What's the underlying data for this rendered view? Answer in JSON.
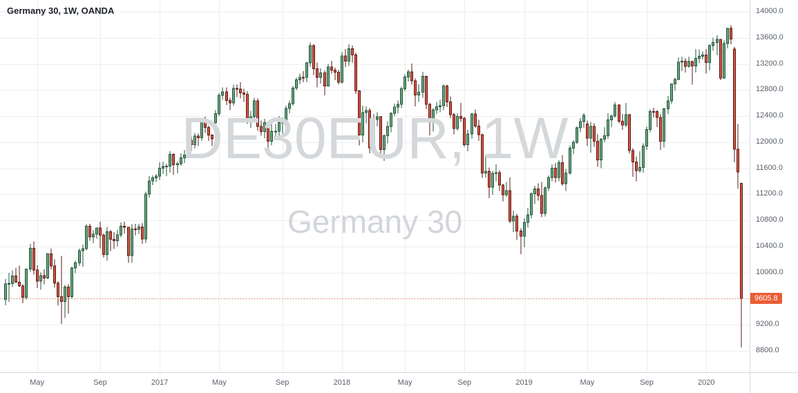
{
  "legend": {
    "title": "Germany 30, 1W, OANDA"
  },
  "watermark": {
    "line1": "DE30EUR, 1W",
    "line2": "Germany 30"
  },
  "price_label": {
    "value": "9605.8"
  },
  "colors": {
    "up_fill": "#6ba583",
    "up_border": "#225437",
    "down_fill": "#d75442",
    "down_border": "#5b1a13",
    "grid": "#ededef",
    "axis_text": "#585f6a",
    "price_line": "#ea5d34",
    "watermark": "#d5d8db"
  },
  "chart_data": {
    "type": "candlestick",
    "title": "Germany 30, 1W, OANDA",
    "symbol": "DE30EUR",
    "timeframe": "1W",
    "exchange": "OANDA",
    "last_price": 9605.8,
    "ylim": [
      8470,
      14180
    ],
    "y_ticks": [
      8800,
      9200,
      9600,
      10000,
      10400,
      10800,
      11200,
      11600,
      12000,
      12400,
      12800,
      13200,
      13600,
      14000
    ],
    "x_ticks": [
      {
        "i": 9,
        "label": "May"
      },
      {
        "i": 27,
        "label": "Sep"
      },
      {
        "i": 44,
        "label": "2017"
      },
      {
        "i": 61,
        "label": "May"
      },
      {
        "i": 79,
        "label": "Sep"
      },
      {
        "i": 96,
        "label": "2018"
      },
      {
        "i": 114,
        "label": "May"
      },
      {
        "i": 131,
        "label": "Sep"
      },
      {
        "i": 148,
        "label": "2019"
      },
      {
        "i": 166,
        "label": "May"
      },
      {
        "i": 183,
        "label": "Sep"
      },
      {
        "i": 200,
        "label": "2020"
      }
    ],
    "candles": [
      [
        9590,
        9900,
        9500,
        9824
      ],
      [
        9824,
        9995,
        9550,
        9831
      ],
      [
        9831,
        10030,
        9780,
        9950
      ],
      [
        9950,
        10070,
        9840,
        9851
      ],
      [
        9851,
        10105,
        9780,
        9794
      ],
      [
        9794,
        9820,
        9530,
        9622
      ],
      [
        9622,
        10060,
        9590,
        10052
      ],
      [
        10052,
        10440,
        10010,
        10373
      ],
      [
        10373,
        10475,
        9970,
        10039
      ],
      [
        10039,
        10110,
        9760,
        9870
      ],
      [
        9870,
        10000,
        9737,
        9952
      ],
      [
        9952,
        10050,
        9820,
        9916
      ],
      [
        9916,
        10300,
        9900,
        10286
      ],
      [
        10286,
        10365,
        10050,
        10103
      ],
      [
        10103,
        10200,
        9770,
        9835
      ],
      [
        9835,
        9870,
        9490,
        9631
      ],
      [
        9631,
        10257,
        9214,
        9557
      ],
      [
        9557,
        9810,
        9300,
        9776
      ],
      [
        9776,
        9820,
        9370,
        9630
      ],
      [
        9630,
        10090,
        9600,
        10067
      ],
      [
        10067,
        10180,
        9990,
        10147
      ],
      [
        10147,
        10365,
        10100,
        10337
      ],
      [
        10337,
        10430,
        10090,
        10367
      ],
      [
        10367,
        10740,
        10340,
        10713
      ],
      [
        10713,
        10745,
        10490,
        10544
      ],
      [
        10544,
        10650,
        10450,
        10588
      ],
      [
        10588,
        10690,
        10520,
        10684
      ],
      [
        10684,
        10780,
        10370,
        10573
      ],
      [
        10573,
        10600,
        10230,
        10276
      ],
      [
        10276,
        10700,
        10180,
        10626
      ],
      [
        10626,
        10650,
        10330,
        10511
      ],
      [
        10511,
        10620,
        10360,
        10490
      ],
      [
        10490,
        10650,
        10400,
        10580
      ],
      [
        10580,
        10770,
        10540,
        10710
      ],
      [
        10710,
        10780,
        10600,
        10696
      ],
      [
        10696,
        10700,
        10150,
        10259
      ],
      [
        10259,
        10740,
        10150,
        10668
      ],
      [
        10668,
        10750,
        10570,
        10665
      ],
      [
        10665,
        10750,
        10590,
        10699
      ],
      [
        10699,
        10760,
        10440,
        10513
      ],
      [
        10513,
        11240,
        10450,
        11204
      ],
      [
        11204,
        11480,
        11150,
        11404
      ],
      [
        11404,
        11490,
        11340,
        11450
      ],
      [
        11450,
        11510,
        11390,
        11481
      ],
      [
        11481,
        11690,
        11420,
        11599
      ],
      [
        11599,
        11700,
        11510,
        11629
      ],
      [
        11629,
        11670,
        11480,
        11630
      ],
      [
        11630,
        11860,
        11530,
        11814
      ],
      [
        11814,
        11830,
        11500,
        11651
      ],
      [
        11651,
        11700,
        11520,
        11667
      ],
      [
        11667,
        11830,
        11640,
        11757
      ],
      [
        11757,
        11880,
        11680,
        11804
      ],
      [
        11804,
        12070,
        11760,
        12027
      ],
      [
        12027,
        12090,
        11870,
        11963
      ],
      [
        11963,
        12140,
        11900,
        12095
      ],
      [
        12095,
        12130,
        11940,
        12064
      ],
      [
        12064,
        12330,
        12020,
        12313
      ],
      [
        12313,
        12390,
        12140,
        12225
      ],
      [
        12225,
        12250,
        12020,
        12109
      ],
      [
        12109,
        12120,
        11940,
        12049
      ],
      [
        12300,
        12490,
        12250,
        12438
      ],
      [
        12438,
        12750,
        12400,
        12717
      ],
      [
        12717,
        12840,
        12650,
        12770
      ],
      [
        12770,
        12840,
        12570,
        12638
      ],
      [
        12638,
        12680,
        12490,
        12602
      ],
      [
        12602,
        12880,
        12560,
        12823
      ],
      [
        12823,
        12880,
        12690,
        12816
      ],
      [
        12816,
        12920,
        12670,
        12753
      ],
      [
        12753,
        12820,
        12620,
        12733
      ],
      [
        12733,
        12780,
        12280,
        12325
      ],
      [
        12325,
        12480,
        12220,
        12389
      ],
      [
        12389,
        12680,
        12350,
        12632
      ],
      [
        12632,
        12670,
        12170,
        12240
      ],
      [
        12240,
        12330,
        12100,
        12163
      ],
      [
        12163,
        12360,
        12060,
        12297
      ],
      [
        12297,
        12320,
        11870,
        12014
      ],
      [
        12014,
        12280,
        11950,
        12165
      ],
      [
        12165,
        12280,
        12030,
        12168
      ],
      [
        12168,
        12400,
        12100,
        12300
      ],
      [
        12300,
        12380,
        12130,
        12304
      ],
      [
        12304,
        12560,
        12270,
        12519
      ],
      [
        12519,
        12640,
        12440,
        12592
      ],
      [
        12592,
        12860,
        12560,
        12829
      ],
      [
        12829,
        12990,
        12800,
        12956
      ],
      [
        12956,
        13050,
        12890,
        12992
      ],
      [
        12992,
        13090,
        12920,
        12991
      ],
      [
        12991,
        13230,
        12920,
        13217
      ],
      [
        13217,
        13530,
        13160,
        13479
      ],
      [
        13479,
        13500,
        13030,
        13127
      ],
      [
        13127,
        13220,
        12840,
        12994
      ],
      [
        12994,
        13130,
        12900,
        13060
      ],
      [
        13060,
        13100,
        12720,
        12862
      ],
      [
        12862,
        13200,
        12850,
        13154
      ],
      [
        13154,
        13250,
        13050,
        13104
      ],
      [
        13104,
        13140,
        12950,
        13073
      ],
      [
        13073,
        13110,
        12890,
        12918
      ],
      [
        12918,
        13380,
        12900,
        13320
      ],
      [
        13320,
        13430,
        13150,
        13245
      ],
      [
        13245,
        13500,
        13170,
        13434
      ],
      [
        13434,
        13480,
        13220,
        13340
      ],
      [
        13340,
        13370,
        12740,
        12785
      ],
      [
        12785,
        12800,
        11950,
        12107
      ],
      [
        12107,
        12560,
        12000,
        12452
      ],
      [
        12452,
        12550,
        12290,
        12484
      ],
      [
        12484,
        12520,
        11830,
        11914
      ],
      [
        11914,
        12430,
        11880,
        12347
      ],
      [
        12347,
        12460,
        12240,
        12390
      ],
      [
        12390,
        12400,
        11790,
        11886
      ],
      [
        11886,
        12120,
        11710,
        12096
      ],
      [
        12096,
        12320,
        11980,
        12241
      ],
      [
        12241,
        12460,
        12150,
        12442
      ],
      [
        12442,
        12590,
        12400,
        12540
      ],
      [
        12540,
        12640,
        12440,
        12580
      ],
      [
        12580,
        12850,
        12520,
        12820
      ],
      [
        12820,
        13040,
        12780,
        13001
      ],
      [
        13001,
        13110,
        12930,
        13078
      ],
      [
        13078,
        13204,
        12880,
        12938
      ],
      [
        12938,
        12980,
        12550,
        12724
      ],
      [
        12724,
        12890,
        12620,
        12767
      ],
      [
        12767,
        13080,
        12680,
        13011
      ],
      [
        13011,
        13020,
        12504,
        12580
      ],
      [
        12580,
        12600,
        12104,
        12306
      ],
      [
        12306,
        12520,
        12160,
        12496
      ],
      [
        12496,
        12620,
        12430,
        12541
      ],
      [
        12541,
        12650,
        12460,
        12561
      ],
      [
        12561,
        12890,
        12490,
        12860
      ],
      [
        12860,
        12880,
        12540,
        12616
      ],
      [
        12616,
        12700,
        12370,
        12424
      ],
      [
        12424,
        12450,
        12120,
        12211
      ],
      [
        12211,
        12440,
        12180,
        12394
      ],
      [
        12394,
        12600,
        12310,
        12364
      ],
      [
        12364,
        12390,
        11930,
        11960
      ],
      [
        11960,
        12190,
        11860,
        12124
      ],
      [
        12124,
        12450,
        12050,
        12431
      ],
      [
        12431,
        12500,
        12220,
        12247
      ],
      [
        12247,
        12340,
        12020,
        12112
      ],
      [
        12112,
        12130,
        11450,
        11524
      ],
      [
        11524,
        11790,
        11460,
        11554
      ],
      [
        11554,
        11610,
        11140,
        11311
      ],
      [
        11311,
        11560,
        11190,
        11519
      ],
      [
        11519,
        11660,
        11400,
        11529
      ],
      [
        11529,
        11570,
        11250,
        11341
      ],
      [
        11341,
        11360,
        11090,
        11193
      ],
      [
        11193,
        11390,
        11160,
        11257
      ],
      [
        11257,
        11460,
        10760,
        10788
      ],
      [
        10788,
        10950,
        10620,
        10866
      ],
      [
        10866,
        10900,
        10500,
        10634
      ],
      [
        10634,
        10680,
        10280,
        10559
      ],
      [
        10559,
        10830,
        10390,
        10768
      ],
      [
        10768,
        10990,
        10690,
        10887
      ],
      [
        10887,
        11230,
        10830,
        11206
      ],
      [
        11206,
        11330,
        11050,
        11282
      ],
      [
        11282,
        11370,
        11100,
        11181
      ],
      [
        11181,
        11390,
        10850,
        10907
      ],
      [
        10907,
        11320,
        10860,
        11300
      ],
      [
        11300,
        11490,
        11250,
        11458
      ],
      [
        11458,
        11660,
        11400,
        11602
      ],
      [
        11602,
        11680,
        11380,
        11458
      ],
      [
        11458,
        11720,
        11400,
        11686
      ],
      [
        11686,
        11800,
        11330,
        11364
      ],
      [
        11364,
        11590,
        11250,
        11526
      ],
      [
        11526,
        11950,
        11500,
        11910
      ],
      [
        11910,
        12030,
        11820,
        11999
      ],
      [
        11999,
        12240,
        11970,
        12222
      ],
      [
        12222,
        12370,
        12150,
        12315
      ],
      [
        12315,
        12440,
        12220,
        12413
      ],
      [
        12280,
        12330,
        11940,
        12060
      ],
      [
        12060,
        12310,
        11840,
        12239
      ],
      [
        12239,
        12290,
        11930,
        12011
      ],
      [
        12011,
        12120,
        11620,
        11727
      ],
      [
        11727,
        12060,
        11600,
        12045
      ],
      [
        12045,
        12230,
        12000,
        12096
      ],
      [
        12096,
        12440,
        12050,
        12340
      ],
      [
        12340,
        12420,
        12230,
        12399
      ],
      [
        12399,
        12620,
        12380,
        12569
      ],
      [
        12569,
        12580,
        12290,
        12323
      ],
      [
        12323,
        12430,
        12190,
        12260
      ],
      [
        12260,
        12600,
        12230,
        12420
      ],
      [
        12420,
        12430,
        11830,
        11872
      ],
      [
        11872,
        11910,
        11470,
        11694
      ],
      [
        11694,
        11780,
        11400,
        11563
      ],
      [
        11563,
        11860,
        11530,
        11612
      ],
      [
        11612,
        11980,
        11530,
        11939
      ],
      [
        11939,
        12240,
        11880,
        12192
      ],
      [
        12192,
        12500,
        12150,
        12469
      ],
      [
        12469,
        12530,
        12380,
        12468
      ],
      [
        12468,
        12490,
        12230,
        12381
      ],
      [
        12381,
        12430,
        11880,
        12013
      ],
      [
        12013,
        12520,
        11920,
        12512
      ],
      [
        12512,
        12710,
        12430,
        12634
      ],
      [
        12634,
        12900,
        12590,
        12895
      ],
      [
        12895,
        12990,
        12790,
        12961
      ],
      [
        12961,
        13300,
        12950,
        13229
      ],
      [
        13229,
        13310,
        13090,
        13242
      ],
      [
        13242,
        13290,
        13070,
        13164
      ],
      [
        13164,
        13310,
        13140,
        13236
      ],
      [
        13236,
        13250,
        12880,
        13167
      ],
      [
        13167,
        13430,
        13070,
        13283
      ],
      [
        13283,
        13420,
        13210,
        13319
      ],
      [
        13319,
        13390,
        13270,
        13337
      ],
      [
        13337,
        13430,
        13050,
        13219
      ],
      [
        13219,
        13500,
        13100,
        13483
      ],
      [
        13483,
        13600,
        13400,
        13526
      ],
      [
        13526,
        13640,
        13330,
        13577
      ],
      [
        13577,
        13580,
        12950,
        12982
      ],
      [
        12982,
        13560,
        12970,
        13514
      ],
      [
        13514,
        13750,
        13440,
        13744
      ],
      [
        13744,
        13795,
        13500,
        13579
      ],
      [
        13430,
        13460,
        11690,
        11890
      ],
      [
        11890,
        12280,
        11290,
        11542
      ],
      [
        11370,
        11380,
        8850,
        9605.8
      ]
    ]
  }
}
